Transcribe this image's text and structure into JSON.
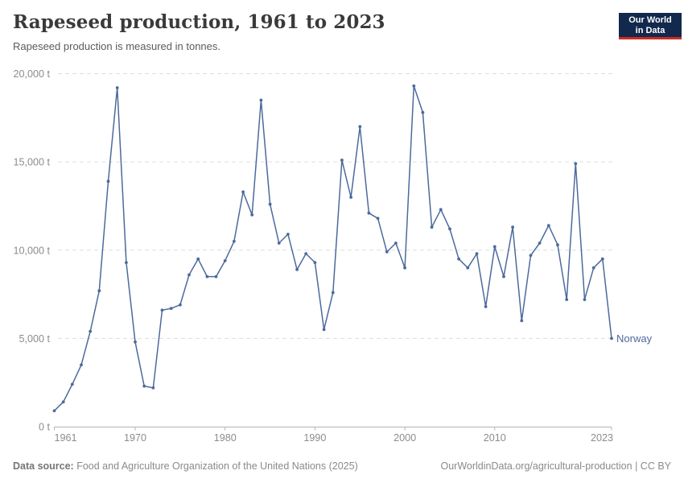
{
  "header": {
    "title": "Rapeseed production, 1961 to 2023",
    "subtitle": "Rapeseed production is measured in tonnes.",
    "logo": {
      "line1": "Our World",
      "line2": "in Data"
    }
  },
  "footer": {
    "source_label": "Data source:",
    "source_text": "Food and Agriculture Organization of the United Nations (2025)",
    "url_text": "OurWorldinData.org/agricultural-production",
    "separator": "|",
    "license_text": "CC BY"
  },
  "colors": {
    "line": "#4c6a9c",
    "grid": "#dddddd",
    "axis_line": "#b3b3b3",
    "axis_text": "#8c8c8c",
    "entity_label": "#4c6a9c",
    "logo_bg": "#12294d",
    "logo_red": "#cf2c22",
    "title_text": "#3a3a3a",
    "subtitle_text": "#5b5b5b",
    "footer_text": "#8a8a8a"
  },
  "chart_data": {
    "type": "line",
    "title": "Rapeseed production, 1961 to 2023",
    "ylabel": "",
    "xlabel": "",
    "unit": "t",
    "series_name": "Norway",
    "legend": "end-of-line-label",
    "grid": "dashed-horizontal",
    "ylim": [
      0,
      20000
    ],
    "ytick_values": [
      0,
      5000,
      10000,
      15000,
      20000
    ],
    "ytick_labels": [
      "0 t",
      "5,000 t",
      "10,000 t",
      "15,000 t",
      "20,000 t"
    ],
    "xtick_values": [
      1961,
      1970,
      1980,
      1990,
      2000,
      2010,
      2023
    ],
    "x": [
      1961,
      1962,
      1963,
      1964,
      1965,
      1966,
      1967,
      1968,
      1969,
      1970,
      1971,
      1972,
      1973,
      1974,
      1975,
      1976,
      1977,
      1978,
      1979,
      1980,
      1981,
      1982,
      1983,
      1984,
      1985,
      1986,
      1987,
      1988,
      1989,
      1990,
      1991,
      1992,
      1993,
      1994,
      1995,
      1996,
      1997,
      1998,
      1999,
      2000,
      2001,
      2002,
      2003,
      2004,
      2005,
      2006,
      2007,
      2008,
      2009,
      2010,
      2011,
      2012,
      2013,
      2014,
      2015,
      2016,
      2017,
      2018,
      2019,
      2020,
      2021,
      2022,
      2023
    ],
    "values": [
      900,
      1400,
      2400,
      3500,
      5400,
      7700,
      13900,
      19200,
      9300,
      4800,
      2300,
      2200,
      6600,
      6700,
      6900,
      8600,
      9500,
      8500,
      8500,
      9400,
      10500,
      13300,
      12000,
      18500,
      12600,
      10400,
      10900,
      8900,
      9800,
      9300,
      5500,
      7600,
      15100,
      13000,
      17000,
      12100,
      11800,
      9900,
      10400,
      9000,
      19300,
      17800,
      11300,
      12300,
      11200,
      9500,
      9000,
      9800,
      6800,
      10200,
      8500,
      11300,
      6000,
      9700,
      10400,
      11400,
      10300,
      7200,
      14900,
      7200,
      9000,
      9500,
      5000
    ]
  }
}
